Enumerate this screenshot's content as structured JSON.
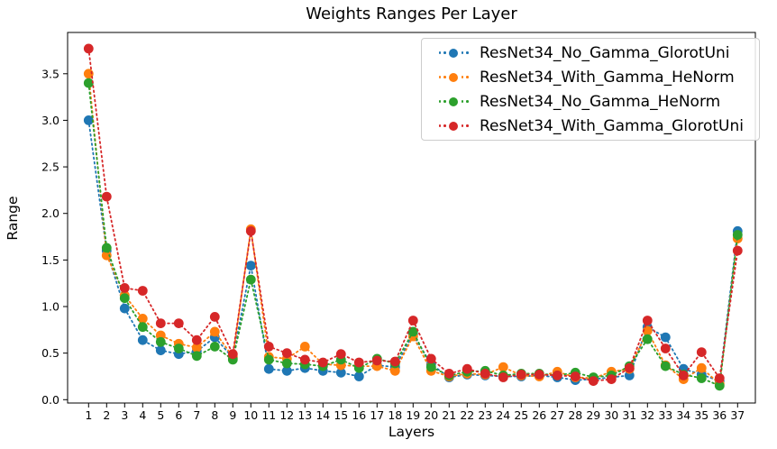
{
  "chart_data": {
    "type": "line",
    "title": "Weights Ranges Per Layer",
    "xlabel": "Layers",
    "ylabel": "Range",
    "line_style": "dotted",
    "marker": "circle",
    "grid": false,
    "legend_position": "upper-right-inside",
    "categories": [
      "1",
      "2",
      "3",
      "4",
      "5",
      "6",
      "7",
      "8",
      "9",
      "10",
      "11",
      "12",
      "13",
      "14",
      "15",
      "16",
      "17",
      "18",
      "19",
      "20",
      "21",
      "22",
      "23",
      "24",
      "25",
      "26",
      "27",
      "28",
      "29",
      "30",
      "31",
      "32",
      "33",
      "34",
      "35",
      "36",
      "37"
    ],
    "y_tick_labels": [
      "0.0",
      "0.5",
      "1.0",
      "1.5",
      "2.0",
      "2.5",
      "3.0",
      "3.5"
    ],
    "y_ticks": [
      0.0,
      0.5,
      1.0,
      1.5,
      2.0,
      2.5,
      3.0,
      3.5
    ],
    "ylim": [
      -0.05,
      3.95
    ],
    "series": [
      {
        "name": "ResNet34_No_Gamma_GlorotUni",
        "color": "#1f77b4",
        "values": [
          3.0,
          1.6,
          0.98,
          0.64,
          0.53,
          0.49,
          0.52,
          0.67,
          0.45,
          1.44,
          0.33,
          0.31,
          0.34,
          0.31,
          0.29,
          0.25,
          0.37,
          0.35,
          0.7,
          0.38,
          0.24,
          0.27,
          0.26,
          0.25,
          0.25,
          0.26,
          0.24,
          0.21,
          0.22,
          0.24,
          0.26,
          0.78,
          0.67,
          0.33,
          0.27,
          0.2,
          1.81
        ]
      },
      {
        "name": "ResNet34_With_Gamma_HeNorm",
        "color": "#ff7f0e",
        "values": [
          3.5,
          1.55,
          1.12,
          0.87,
          0.69,
          0.6,
          0.56,
          0.73,
          0.46,
          1.83,
          0.46,
          0.44,
          0.57,
          0.38,
          0.37,
          0.36,
          0.36,
          0.31,
          0.68,
          0.31,
          0.25,
          0.28,
          0.27,
          0.35,
          0.26,
          0.25,
          0.3,
          0.24,
          0.23,
          0.3,
          0.33,
          0.74,
          0.37,
          0.22,
          0.34,
          0.17,
          1.73
        ]
      },
      {
        "name": "ResNet34_No_Gamma_HeNorm",
        "color": "#2ca02c",
        "values": [
          3.4,
          1.63,
          1.09,
          0.78,
          0.62,
          0.55,
          0.47,
          0.57,
          0.43,
          1.29,
          0.43,
          0.39,
          0.38,
          0.36,
          0.43,
          0.34,
          0.44,
          0.39,
          0.73,
          0.35,
          0.26,
          0.3,
          0.31,
          0.26,
          0.28,
          0.28,
          0.26,
          0.29,
          0.24,
          0.26,
          0.36,
          0.65,
          0.36,
          0.27,
          0.23,
          0.15,
          1.77
        ]
      },
      {
        "name": "ResNet34_With_Gamma_GlorotUni",
        "color": "#d62728",
        "values": [
          3.77,
          2.18,
          1.2,
          1.17,
          0.82,
          0.82,
          0.64,
          0.89,
          0.49,
          1.81,
          0.57,
          0.5,
          0.43,
          0.4,
          0.49,
          0.4,
          0.42,
          0.41,
          0.85,
          0.44,
          0.28,
          0.33,
          0.28,
          0.24,
          0.27,
          0.27,
          0.26,
          0.25,
          0.2,
          0.22,
          0.34,
          0.85,
          0.55,
          0.26,
          0.51,
          0.23,
          1.6
        ]
      }
    ]
  }
}
